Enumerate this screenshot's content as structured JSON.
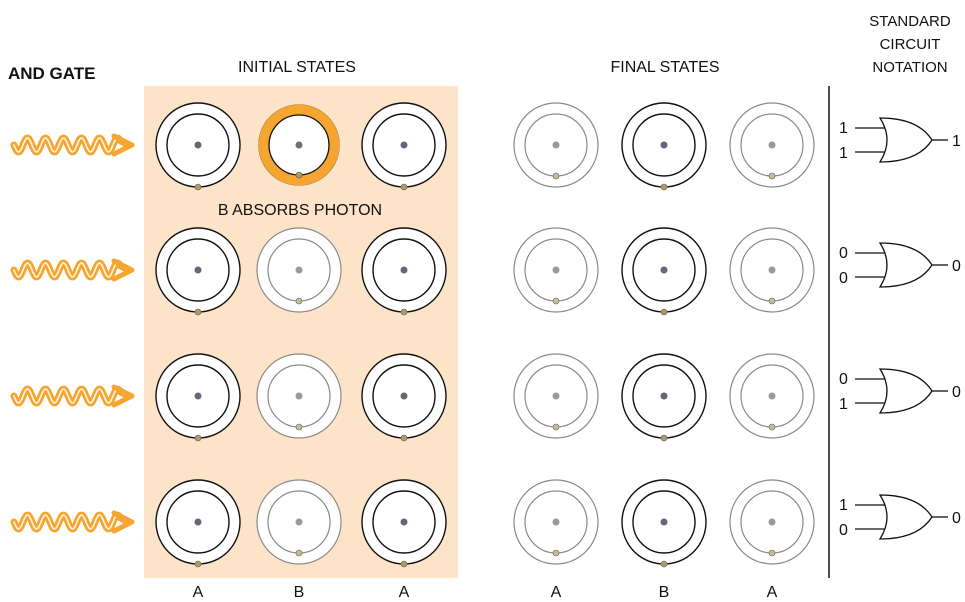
{
  "title": "AND GATE",
  "headers": {
    "initial": "INITIAL STATES",
    "final": "FINAL STATES",
    "notation": [
      "STANDARD",
      "CIRCUIT",
      "NOTATION"
    ]
  },
  "annotation": "B ABSORBS PHOTON",
  "column_labels": [
    "A",
    "B",
    "A"
  ],
  "colors": {
    "highlight_bg": "#fde3c8",
    "photon": "#f6a530",
    "excited_orbit": "#f6a530",
    "dark_ring": "#111111",
    "light_ring": "#8a8a8a"
  },
  "rows": [
    {
      "initial": [
        "dark",
        "excited",
        "dark"
      ],
      "final": [
        "light",
        "dark",
        "light"
      ],
      "inputs": [
        "1",
        "1"
      ],
      "output": "1"
    },
    {
      "initial": [
        "dark",
        "light",
        "dark"
      ],
      "final": [
        "light",
        "dark",
        "light"
      ],
      "inputs": [
        "0",
        "0"
      ],
      "output": "0"
    },
    {
      "initial": [
        "dark",
        "light",
        "dark"
      ],
      "final": [
        "light",
        "dark",
        "light"
      ],
      "inputs": [
        "0",
        "1"
      ],
      "output": "0"
    },
    {
      "initial": [
        "dark",
        "light",
        "dark"
      ],
      "final": [
        "light",
        "dark",
        "light"
      ],
      "inputs": [
        "1",
        "0"
      ],
      "output": "0"
    }
  ]
}
